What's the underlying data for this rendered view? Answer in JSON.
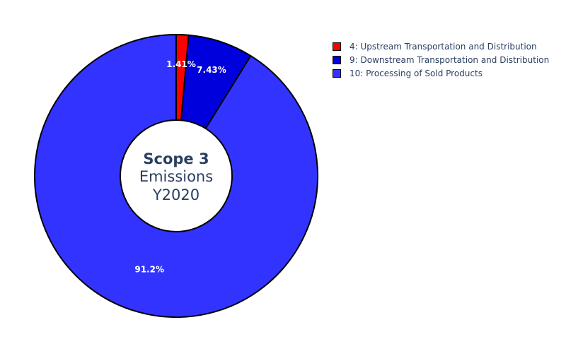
{
  "chart_data": {
    "type": "pie",
    "hole": true,
    "center_text": {
      "line1": "Scope 3",
      "line2": "Emissions",
      "line3": "Y2020"
    },
    "categories": [
      "4: Upstream Transportation and Distribution",
      "9: Downstream Transportation and Distribution",
      "10: Processing of Sold Products"
    ],
    "values": [
      1.41,
      7.43,
      91.2
    ],
    "labels": [
      "1.41%",
      "7.43%",
      "91.2%"
    ],
    "colors": [
      "#ff0000",
      "#0000dd",
      "#3333ff"
    ],
    "legend_position": "top-right",
    "direction": "clockwise",
    "start": "top"
  }
}
